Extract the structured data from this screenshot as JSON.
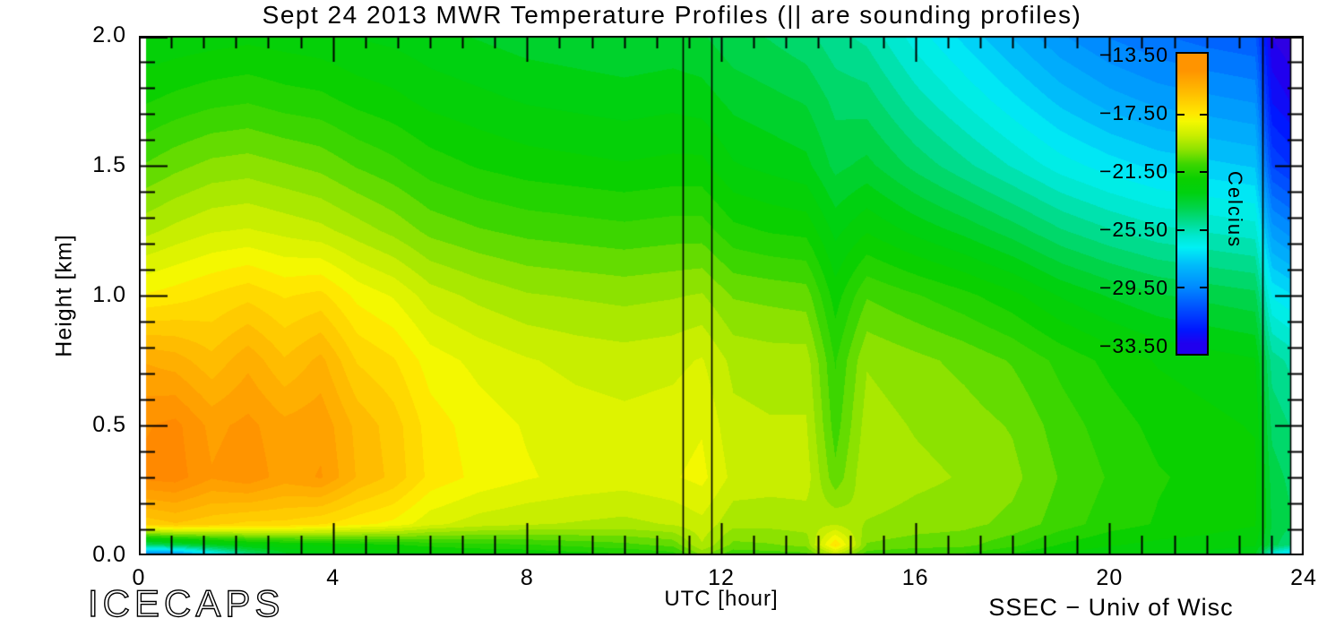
{
  "title": "Sept 24 2013 MWR Temperature Profiles (|| are sounding profiles)",
  "footer": {
    "project": "ICECAPS",
    "credit": "SSEC − Univ of Wisc"
  },
  "chart_data": {
    "type": "heatmap",
    "title": "Sept 24 2013 MWR Temperature Profiles (|| are sounding profiles)",
    "xlabel": "UTC [hour]",
    "ylabel": "Height [km]",
    "xlim": [
      0,
      24
    ],
    "ylim": [
      0.0,
      2.0
    ],
    "x_tick_labels": [
      "0",
      "4",
      "8",
      "12",
      "16",
      "20",
      "24"
    ],
    "y_tick_labels": [
      "2.0",
      "1.5",
      "1.0",
      "0.5",
      "0.0"
    ],
    "x_minor_ticks_per_major": 6,
    "y_minor_step_km": 0.1,
    "grid_lines": "off",
    "sounding_profile_hours": [
      11.2,
      11.8,
      23.15,
      23.72
    ],
    "colorbar": {
      "title": "Celcius",
      "tick_labels": [
        "−13.50",
        "−17.50",
        "−21.50",
        "−25.50",
        "−29.50",
        "−33.50"
      ],
      "tick_values_c": [
        -13.5,
        -17.5,
        -21.5,
        -25.5,
        -29.5,
        -33.5
      ],
      "top_value_c": -13.3,
      "bottom_value_c": -34.2,
      "position": "right-inset"
    },
    "colormap": [
      [
        -34.5,
        "#3c00d8"
      ],
      [
        -33.5,
        "#2000ee"
      ],
      [
        -32.5,
        "#0018ff"
      ],
      [
        -31.0,
        "#0050ff"
      ],
      [
        -29.5,
        "#008cff"
      ],
      [
        -28.0,
        "#00bcfa"
      ],
      [
        -26.8,
        "#00f0f4"
      ],
      [
        -26.0,
        "#00e8d0"
      ],
      [
        -25.0,
        "#00dc8c"
      ],
      [
        -24.0,
        "#00d448"
      ],
      [
        -23.0,
        "#00d110"
      ],
      [
        -22.0,
        "#0ad000"
      ],
      [
        -21.0,
        "#3cd600"
      ],
      [
        -20.0,
        "#8ce200"
      ],
      [
        -19.0,
        "#c8ee00"
      ],
      [
        -18.0,
        "#f4f800"
      ],
      [
        -17.5,
        "#ffe800"
      ],
      [
        -16.0,
        "#ffbc00"
      ],
      [
        -14.5,
        "#ff9400"
      ],
      [
        -13.0,
        "#ff7300"
      ]
    ],
    "grid": {
      "hours": [
        0.15,
        0.75,
        1.5,
        2.25,
        3,
        3.75,
        4.5,
        5.25,
        6,
        7,
        8,
        9,
        10,
        11,
        11.6,
        12.25,
        13,
        13.75,
        14.35,
        15,
        16,
        17,
        18,
        19,
        20,
        21,
        22,
        23,
        23.35,
        23.75
      ],
      "heights_km": [
        0.0,
        0.04,
        0.12,
        0.3,
        0.5,
        0.75,
        1.0,
        1.25,
        1.5,
        1.75,
        2.0
      ],
      "temps_c": [
        [
          -30.5,
          -30.0,
          -27.5,
          -25.0,
          -23.5,
          -23.0,
          -22.8,
          -22.6,
          -22.5,
          -22.4,
          -22.3,
          -22.1,
          -21.9,
          -21.6,
          -20.2,
          -21.2,
          -21.1,
          -21.0,
          -19.5,
          -21.1,
          -21.3,
          -21.4,
          -21.9,
          -22.4,
          -22.7,
          -22.9,
          -23.0,
          -23.2,
          -26.5,
          -28.0
        ],
        [
          -24.5,
          -24.0,
          -23.3,
          -22.7,
          -22.4,
          -22.2,
          -22.0,
          -21.8,
          -21.6,
          -21.4,
          -21.3,
          -21.1,
          -20.9,
          -20.6,
          -19.3,
          -20.4,
          -20.3,
          -20.1,
          -17.2,
          -20.3,
          -20.5,
          -20.6,
          -21.1,
          -21.8,
          -22.2,
          -22.4,
          -22.5,
          -22.7,
          -24.0,
          -24.8
        ],
        [
          -16.6,
          -16.3,
          -16.6,
          -16.9,
          -16.9,
          -17.2,
          -17.6,
          -17.9,
          -18.6,
          -19.0,
          -19.2,
          -19.3,
          -19.4,
          -19.2,
          -18.9,
          -19.6,
          -19.6,
          -19.5,
          -19.3,
          -19.8,
          -20.0,
          -20.1,
          -20.4,
          -21.0,
          -21.5,
          -21.8,
          -22.0,
          -22.2,
          -23.8,
          -24.2
        ],
        [
          -14.1,
          -14.0,
          -14.7,
          -14.4,
          -15.0,
          -14.7,
          -15.8,
          -16.4,
          -17.4,
          -17.9,
          -18.2,
          -18.4,
          -18.5,
          -18.3,
          -18.1,
          -18.9,
          -19.0,
          -19.0,
          -20.6,
          -19.3,
          -19.6,
          -19.8,
          -20.1,
          -20.8,
          -21.3,
          -21.7,
          -21.9,
          -22.1,
          -24.0,
          -24.4
        ],
        [
          -14.3,
          -14.1,
          -14.9,
          -14.6,
          -15.1,
          -14.9,
          -15.9,
          -16.5,
          -17.5,
          -18.0,
          -18.3,
          -18.5,
          -18.6,
          -18.5,
          -18.3,
          -19.1,
          -19.2,
          -19.2,
          -21.0,
          -19.5,
          -19.8,
          -20.0,
          -20.3,
          -21.0,
          -21.5,
          -21.9,
          -22.1,
          -22.3,
          -24.4,
          -24.8
        ],
        [
          -15.3,
          -15.5,
          -16.1,
          -15.4,
          -16.2,
          -15.6,
          -16.8,
          -17.2,
          -18.0,
          -18.4,
          -18.7,
          -18.9,
          -19.0,
          -18.9,
          -18.7,
          -19.4,
          -19.5,
          -19.5,
          -21.3,
          -19.8,
          -20.1,
          -20.4,
          -20.8,
          -21.4,
          -21.9,
          -22.3,
          -22.5,
          -22.7,
          -25.0,
          -25.4
        ],
        [
          -17.7,
          -17.5,
          -17.2,
          -16.9,
          -17.3,
          -17.1,
          -17.9,
          -18.3,
          -19.0,
          -19.4,
          -19.7,
          -19.8,
          -19.9,
          -19.8,
          -19.7,
          -20.3,
          -20.4,
          -20.5,
          -22.0,
          -20.8,
          -21.2,
          -21.6,
          -22.1,
          -22.8,
          -23.3,
          -23.7,
          -23.9,
          -24.1,
          -26.8,
          -27.2
        ],
        [
          -19.4,
          -19.1,
          -18.8,
          -18.7,
          -18.9,
          -19.1,
          -19.5,
          -19.9,
          -20.4,
          -20.7,
          -20.9,
          -21.0,
          -21.1,
          -21.0,
          -21.0,
          -21.6,
          -21.8,
          -21.9,
          -22.9,
          -22.3,
          -22.9,
          -23.4,
          -24.0,
          -24.7,
          -25.2,
          -25.6,
          -25.8,
          -26.0,
          -29.0,
          -29.5
        ],
        [
          -20.7,
          -20.4,
          -20.1,
          -20.0,
          -20.2,
          -20.4,
          -20.8,
          -21.1,
          -21.5,
          -21.8,
          -22.0,
          -22.1,
          -22.2,
          -22.1,
          -22.1,
          -22.7,
          -22.9,
          -23.1,
          -23.9,
          -23.6,
          -24.4,
          -25.1,
          -25.8,
          -26.5,
          -27.0,
          -27.4,
          -27.6,
          -27.8,
          -31.3,
          -31.8
        ],
        [
          -21.8,
          -21.6,
          -21.4,
          -21.3,
          -21.5,
          -21.6,
          -21.9,
          -22.1,
          -22.4,
          -22.6,
          -22.8,
          -22.9,
          -23.0,
          -22.9,
          -23.0,
          -23.4,
          -23.6,
          -23.8,
          -24.4,
          -24.5,
          -25.5,
          -26.3,
          -27.1,
          -27.9,
          -28.5,
          -28.9,
          -29.1,
          -29.3,
          -32.8,
          -33.3
        ],
        [
          -22.7,
          -22.6,
          -22.5,
          -22.4,
          -22.5,
          -22.6,
          -22.8,
          -22.9,
          -23.1,
          -23.3,
          -23.5,
          -23.6,
          -23.7,
          -23.6,
          -23.7,
          -24.1,
          -24.3,
          -24.6,
          -25.1,
          -25.4,
          -26.5,
          -27.4,
          -28.3,
          -29.2,
          -29.8,
          -30.2,
          -30.5,
          -30.7,
          -33.8,
          -34.2
        ]
      ]
    }
  }
}
